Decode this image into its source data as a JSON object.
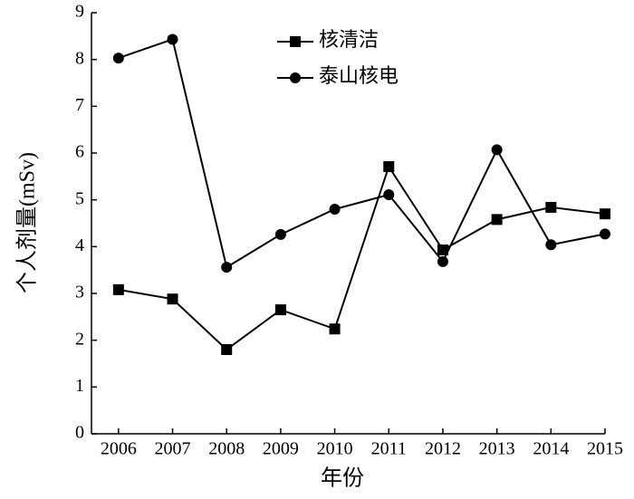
{
  "chart_data": {
    "type": "line",
    "x_label": "年份",
    "y_label": "个人剂量(mSv)",
    "x": [
      2006,
      2007,
      2008,
      2009,
      2010,
      2011,
      2012,
      2013,
      2014,
      2015
    ],
    "series": [
      {
        "name": "核清洁",
        "color": "#000000",
        "marker": "square",
        "values": [
          3.08,
          2.88,
          1.8,
          2.65,
          2.24,
          5.71,
          3.93,
          4.58,
          4.84,
          4.7
        ]
      },
      {
        "name": "泰山核电",
        "color": "#000000",
        "marker": "circle",
        "values": [
          8.03,
          8.43,
          3.56,
          4.26,
          4.8,
          5.11,
          3.68,
          6.07,
          4.04,
          4.27
        ]
      }
    ],
    "xlim": [
      2005.5,
      2015
    ],
    "xticks": [
      2006,
      2007,
      2008,
      2009,
      2010,
      2011,
      2012,
      2013,
      2014,
      2015
    ],
    "ylim": [
      0,
      9
    ],
    "yticks": [
      0,
      1,
      2,
      3,
      4,
      5,
      6,
      7,
      8,
      9
    ],
    "grid": false,
    "legend": "top"
  }
}
